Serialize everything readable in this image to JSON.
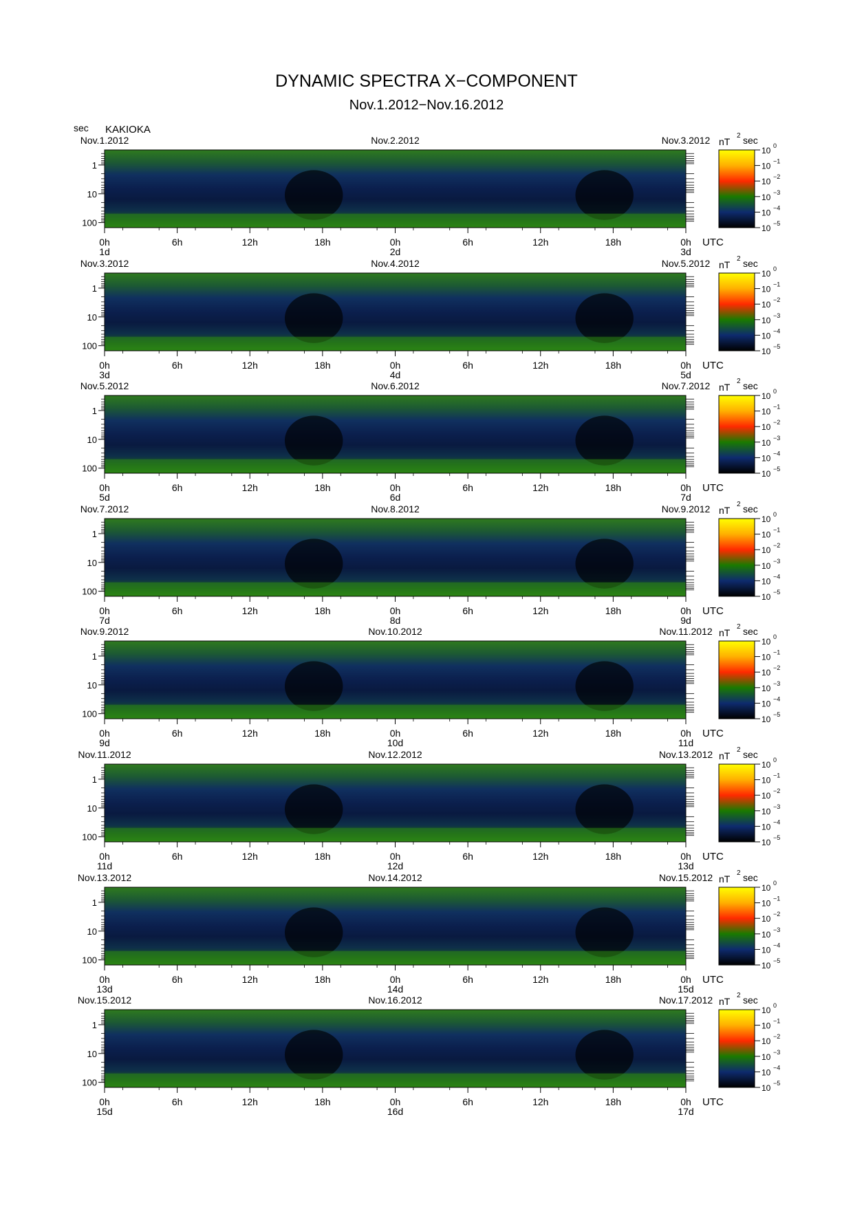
{
  "title": "DYNAMIC SPECTRA X−COMPONENT",
  "subtitle": "Nov.1.2012−Nov.16.2012",
  "unit_label": "sec",
  "station": "KAKIOKA",
  "chart_data": {
    "type": "heatmap",
    "y_unit": "sec",
    "y_scale": "log",
    "y_ticks": [
      "1",
      "10",
      "100"
    ],
    "x_ticks": [
      "0h",
      "6h",
      "12h",
      "18h",
      "0h",
      "6h",
      "12h",
      "18h",
      "0h"
    ],
    "x_unit": "UTC",
    "colorbar": {
      "unit": "nT",
      "unit_power": "2",
      "unit_suffix": "sec",
      "scale": "log",
      "ticks": [
        {
          "base": "10",
          "exp": "0"
        },
        {
          "base": "10",
          "exp": "−1"
        },
        {
          "base": "10",
          "exp": "−2"
        },
        {
          "base": "10",
          "exp": "−3"
        },
        {
          "base": "10",
          "exp": "−4"
        },
        {
          "base": "10",
          "exp": "−5"
        }
      ],
      "colors": [
        "#ffff00",
        "#ffb000",
        "#ff2a00",
        "#1a7a00",
        "#0e2b6e",
        "#000000"
      ]
    },
    "panels": [
      {
        "date_left": "Nov.1.2012",
        "date_mid": "Nov.2.2012",
        "date_right": "Nov.3.2012",
        "day_start": "1d",
        "day_mid": "2d",
        "day_end": "3d"
      },
      {
        "date_left": "Nov.3.2012",
        "date_mid": "Nov.4.2012",
        "date_right": "Nov.5.2012",
        "day_start": "3d",
        "day_mid": "4d",
        "day_end": "5d"
      },
      {
        "date_left": "Nov.5.2012",
        "date_mid": "Nov.6.2012",
        "date_right": "Nov.7.2012",
        "day_start": "5d",
        "day_mid": "6d",
        "day_end": "7d"
      },
      {
        "date_left": "Nov.7.2012",
        "date_mid": "Nov.8.2012",
        "date_right": "Nov.9.2012",
        "day_start": "7d",
        "day_mid": "8d",
        "day_end": "9d"
      },
      {
        "date_left": "Nov.9.2012",
        "date_mid": "Nov.10.2012",
        "date_right": "Nov.11.2012",
        "day_start": "9d",
        "day_mid": "10d",
        "day_end": "11d"
      },
      {
        "date_left": "Nov.11.2012",
        "date_mid": "Nov.12.2012",
        "date_right": "Nov.13.2012",
        "day_start": "11d",
        "day_mid": "12d",
        "day_end": "13d"
      },
      {
        "date_left": "Nov.13.2012",
        "date_mid": "Nov.14.2012",
        "date_right": "Nov.15.2012",
        "day_start": "13d",
        "day_mid": "14d",
        "day_end": "15d"
      },
      {
        "date_left": "Nov.15.2012",
        "date_mid": "Nov.16.2012",
        "date_right": "Nov.17.2012",
        "day_start": "15d",
        "day_mid": "16d",
        "day_end": "17d"
      }
    ]
  }
}
